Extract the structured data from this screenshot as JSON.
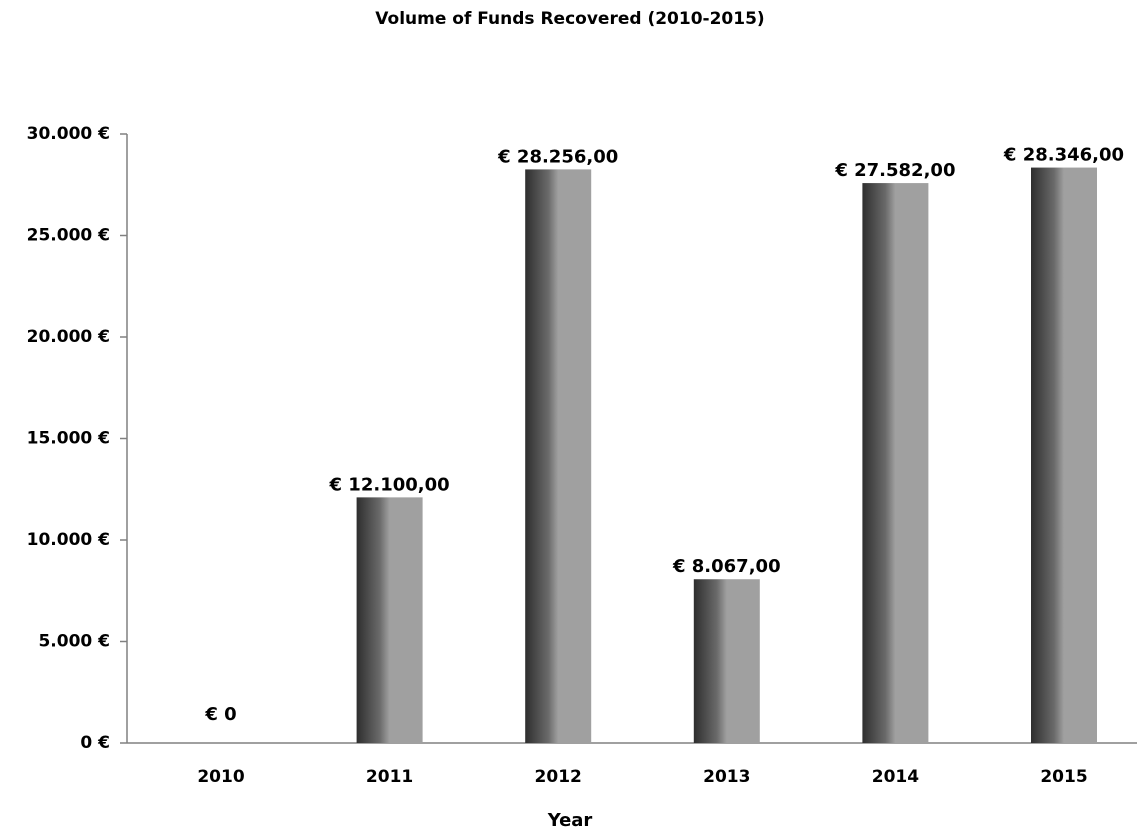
{
  "chart_data": {
    "type": "bar",
    "title": "Volume of Funds Recovered (2010-2015)",
    "x_label": "Year",
    "categories": [
      "2010",
      "2011",
      "2012",
      "2013",
      "2014",
      "2015"
    ],
    "values": [
      0,
      12100,
      28256,
      8067,
      27582,
      28346
    ],
    "value_labels": [
      "€ 0",
      "€ 12.100,00",
      "€ 28.256,00",
      "€ 8.067,00",
      "€ 27.582,00",
      "€ 28.346,00"
    ],
    "color": "#a0a0a0",
    "ylim": [
      0,
      30000
    ],
    "yticks": [
      {
        "value": 0,
        "label": "0 €"
      },
      {
        "value": 5000,
        "label": "5.000 €"
      },
      {
        "value": 10000,
        "label": "10.000 €"
      },
      {
        "value": 15000,
        "label": "15.000 €"
      },
      {
        "value": 20000,
        "label": "20.000 €"
      },
      {
        "value": 25000,
        "label": "25.000 €"
      },
      {
        "value": 30000,
        "label": "30.000 €"
      }
    ],
    "grid": false
  }
}
